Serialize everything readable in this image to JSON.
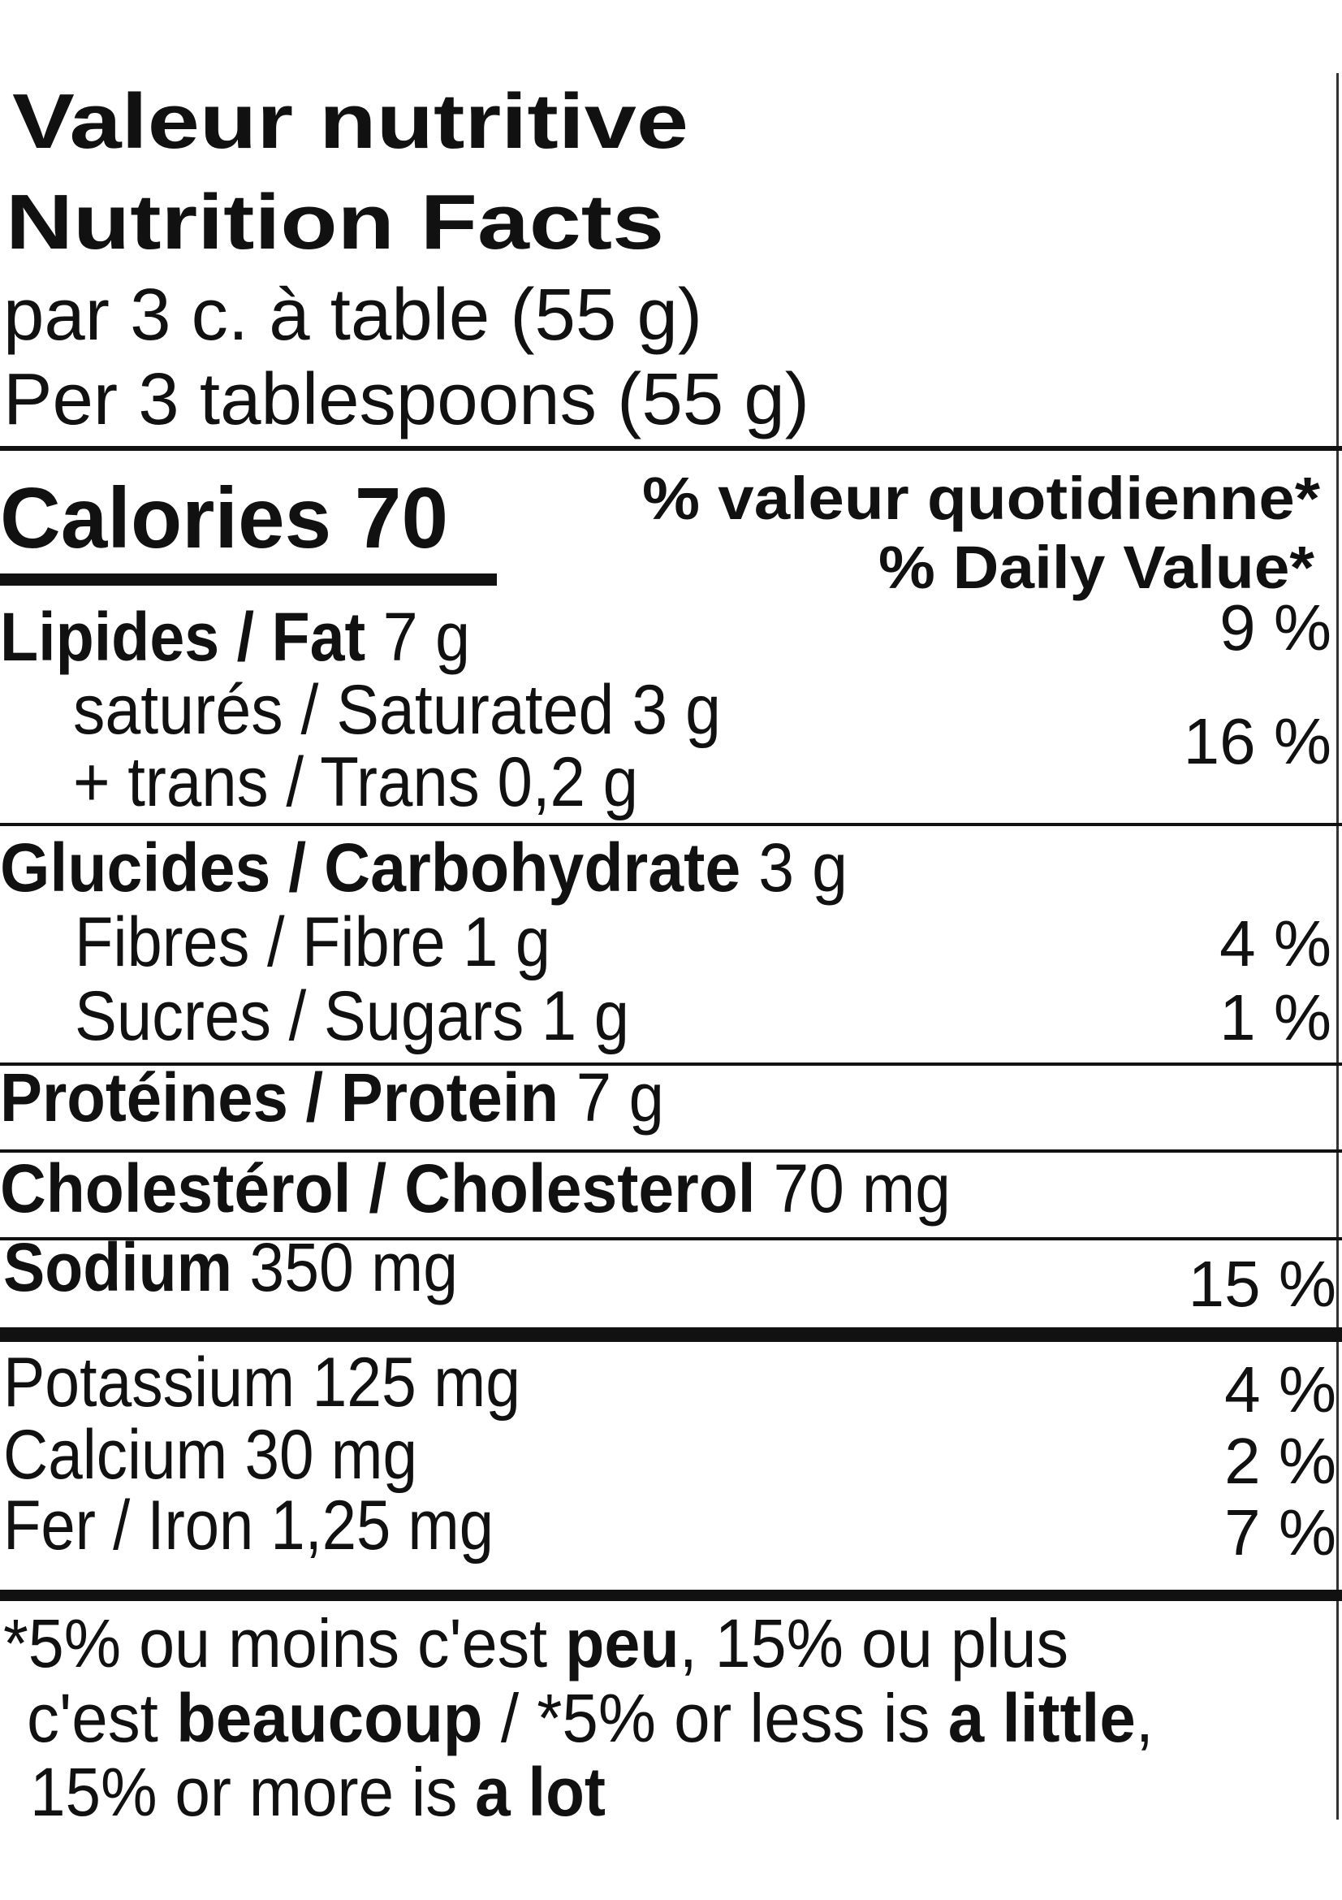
{
  "header": {
    "title_fr": "Valeur nutritive",
    "title_en": "Nutrition Facts",
    "serving_fr": "par 3 c. à table (55 g)",
    "serving_en": "Per 3 tablespoons (55 g)"
  },
  "calories": "Calories 70",
  "dv_header": {
    "fr": "% valeur quotidienne*",
    "en": "% Daily Value*"
  },
  "rows": [
    {
      "name": "Lipides / Fat",
      "amount": "7 g",
      "dv": "9 %"
    },
    {
      "name": "saturés / Saturated",
      "amount": "3 g",
      "dv": "16 %"
    },
    {
      "name": "+ trans / Trans",
      "amount": "0,2 g"
    },
    {
      "name": "Glucides / Carbohydrate",
      "amount": "3 g"
    },
    {
      "name": "Fibres / Fibre",
      "amount": "1 g",
      "dv": "4 %"
    },
    {
      "name": "Sucres / Sugars",
      "amount": "1 g",
      "dv": "1 %"
    },
    {
      "name": "Protéines / Protein",
      "amount": "7 g"
    },
    {
      "name": "Cholestérol / Cholesterol",
      "amount": "70 mg"
    },
    {
      "name": "Sodium",
      "amount": "350 mg",
      "dv": "15 %"
    },
    {
      "name": "Potassium",
      "amount": "125 mg",
      "dv": "4 %"
    },
    {
      "name": "Calcium",
      "amount": "30 mg",
      "dv": "2 %"
    },
    {
      "name": "Fer / Iron",
      "amount": "1,25 mg",
      "dv": "7 %"
    }
  ],
  "footnote": [
    [
      {
        "text": "*5% ou moins c'est ",
        "bold": false
      },
      {
        "text": "peu",
        "bold": true
      },
      {
        "text": ", 15% ou plus",
        "bold": false
      }
    ],
    [
      {
        "text": "c'est ",
        "bold": false
      },
      {
        "text": "beaucoup",
        "bold": true
      },
      {
        "text": " / *5% or less is ",
        "bold": false
      },
      {
        "text": "a little",
        "bold": true
      },
      {
        "text": ",",
        "bold": false
      }
    ],
    [
      {
        "text": "15% or more is ",
        "bold": false
      },
      {
        "text": "a lot",
        "bold": true
      }
    ]
  ]
}
